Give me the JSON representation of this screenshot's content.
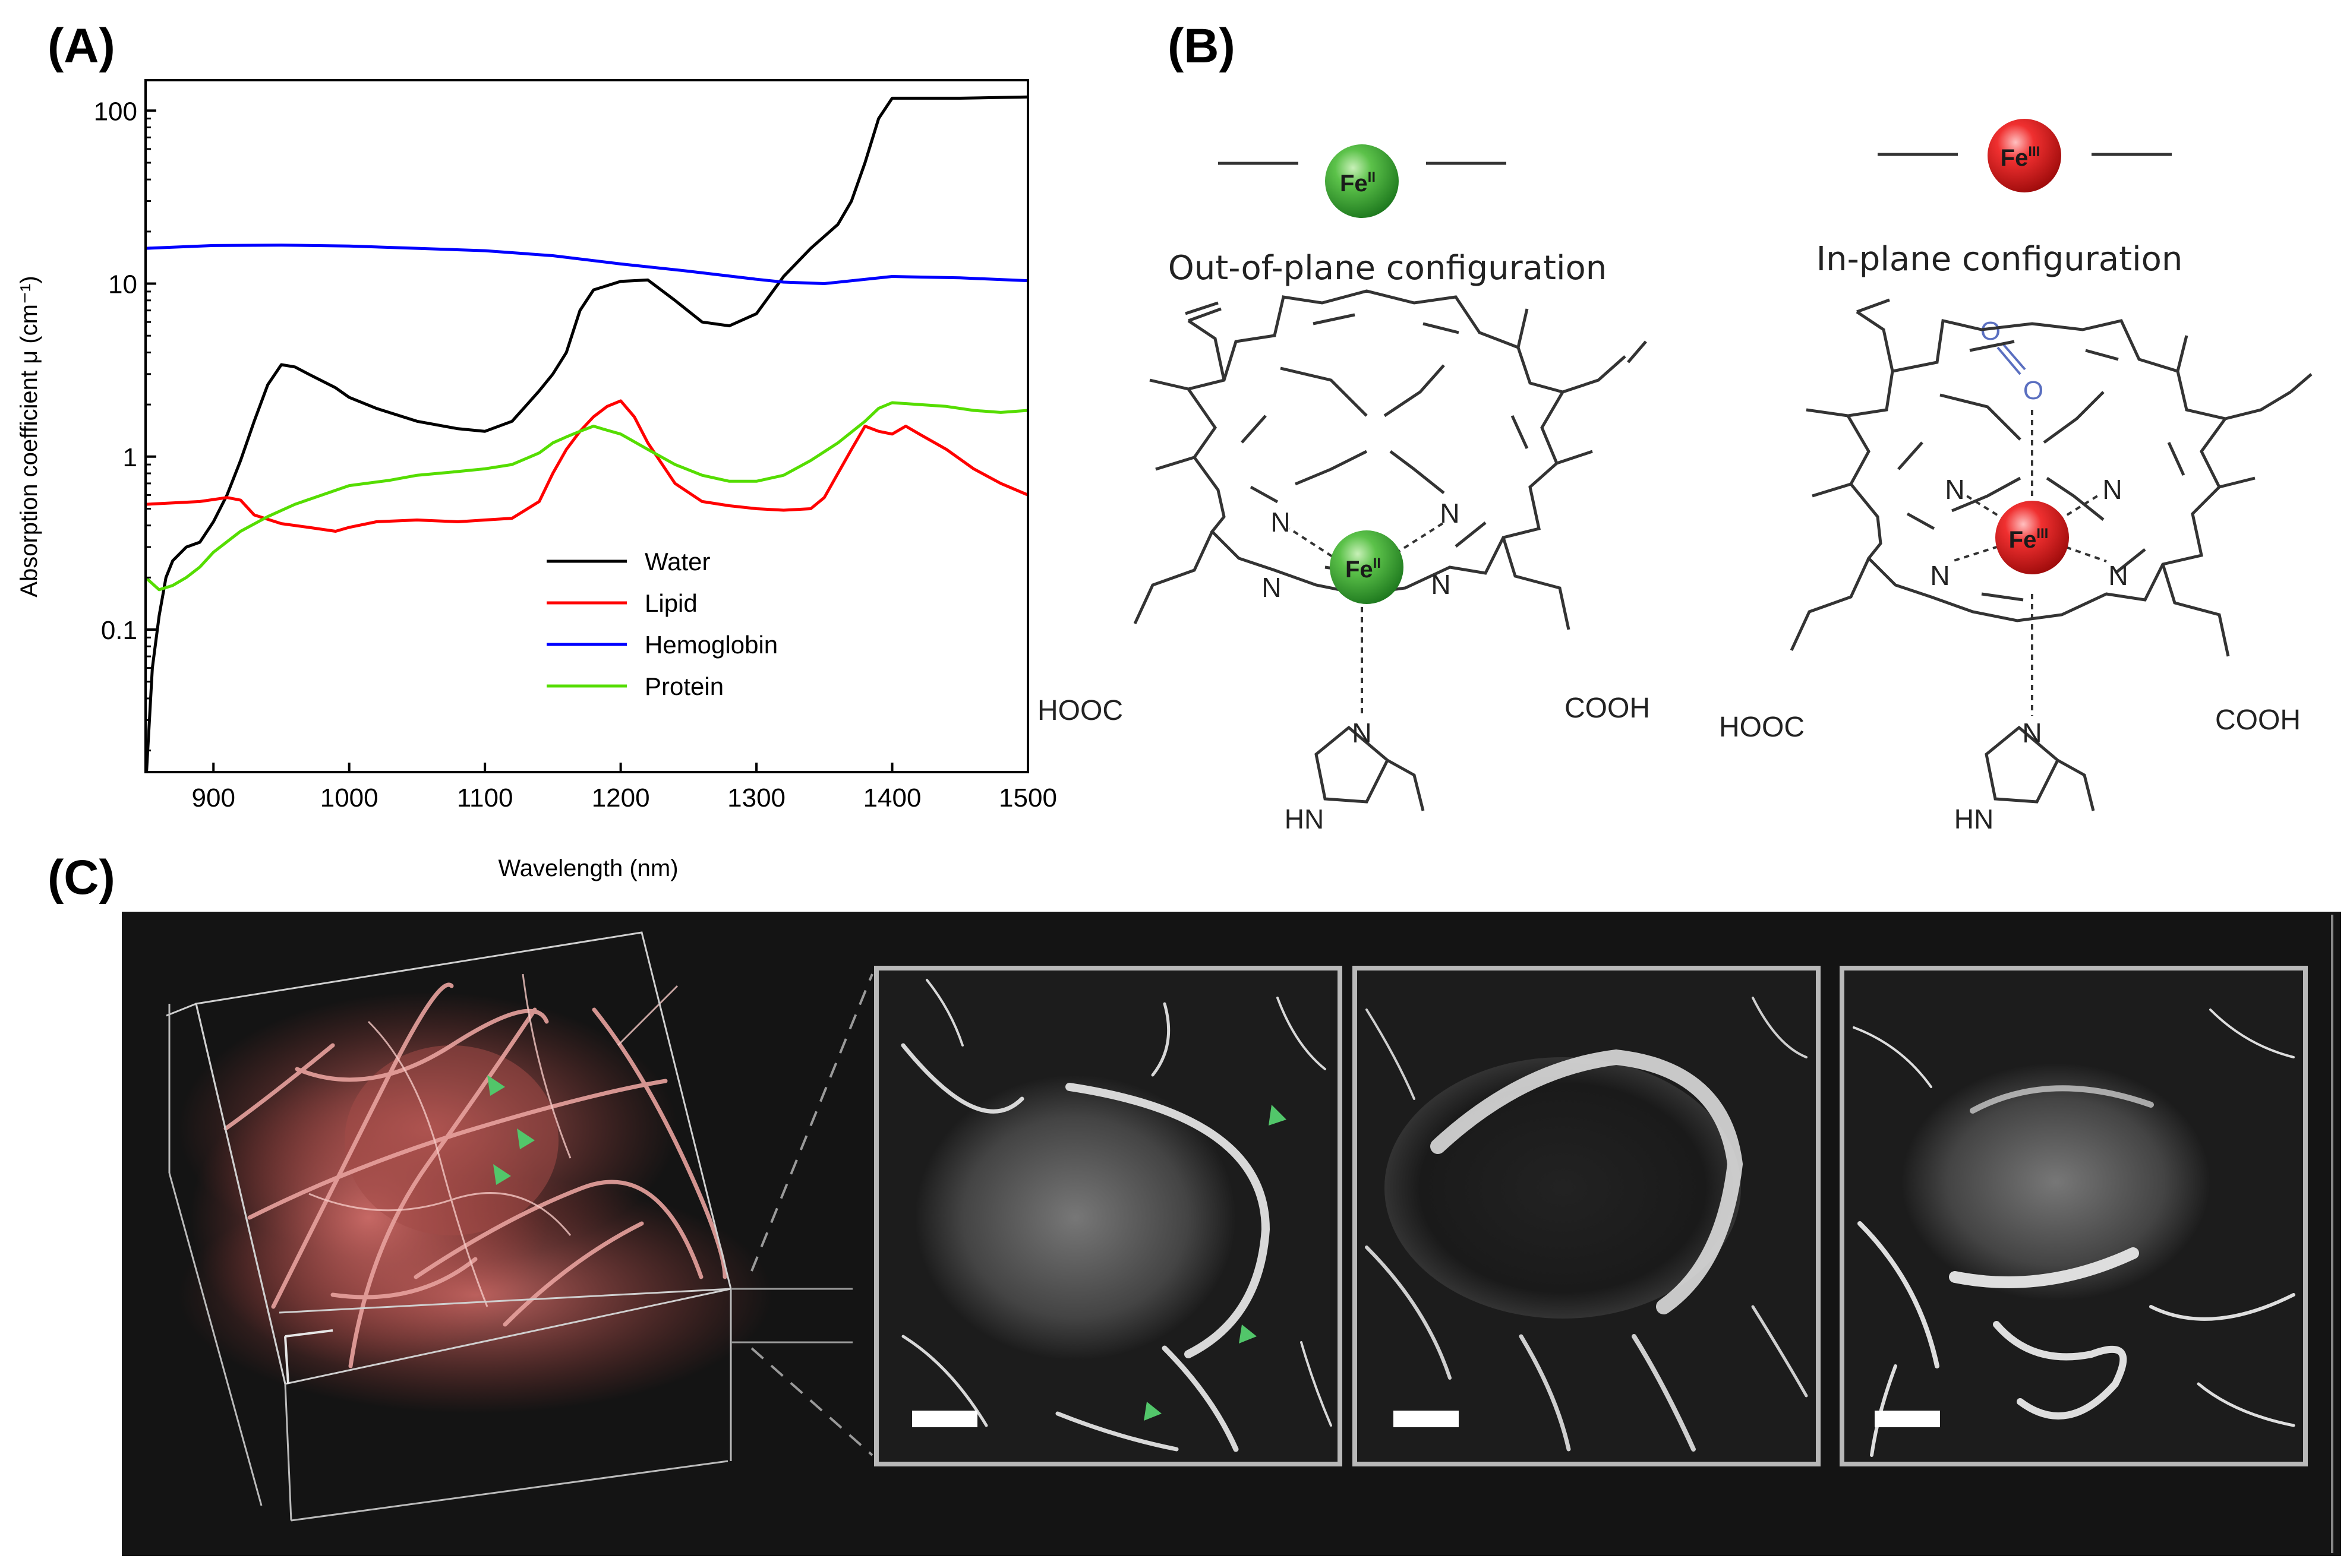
{
  "panels": {
    "a": {
      "label": "(A)"
    },
    "b": {
      "label": "(B)"
    },
    "c": {
      "label": "(C)"
    }
  },
  "chart_data": {
    "type": "line",
    "xlabel": "Wavelength (nm)",
    "ylabel": "Absorption coefficient μ (cm⁻¹)",
    "xlim": [
      850,
      1500
    ],
    "ylim": [
      0.015,
      150
    ],
    "yscale": "log",
    "xticks": [
      900,
      1000,
      1100,
      1200,
      1300,
      1400,
      1500
    ],
    "yticks": [
      {
        "value": 0.1,
        "label": "0.1"
      },
      {
        "value": 1,
        "label": "1"
      },
      {
        "value": 10,
        "label": "10"
      },
      {
        "value": 100,
        "label": "100"
      }
    ],
    "legend_position": "lower-middle",
    "grid": false,
    "series": [
      {
        "name": "Water",
        "color": "#000000",
        "x": [
          850,
          855,
          860,
          865,
          870,
          880,
          890,
          900,
          910,
          920,
          930,
          940,
          950,
          960,
          970,
          990,
          1000,
          1020,
          1050,
          1080,
          1100,
          1120,
          1140,
          1150,
          1160,
          1170,
          1180,
          1200,
          1220,
          1240,
          1260,
          1280,
          1300,
          1320,
          1340,
          1360,
          1370,
          1380,
          1390,
          1400,
          1420,
          1450,
          1500
        ],
        "y": [
          0.012,
          0.06,
          0.12,
          0.2,
          0.25,
          0.3,
          0.32,
          0.42,
          0.6,
          0.95,
          1.6,
          2.6,
          3.4,
          3.3,
          3.0,
          2.5,
          2.2,
          1.9,
          1.6,
          1.45,
          1.4,
          1.6,
          2.4,
          3.0,
          4.0,
          7.0,
          9.2,
          10.3,
          10.5,
          8.0,
          6.0,
          5.7,
          6.7,
          11.0,
          16.0,
          22.0,
          30.0,
          50.0,
          90.0,
          118.0,
          118.0,
          118.0,
          120.0
        ]
      },
      {
        "name": "Lipid",
        "color": "#ff0000",
        "x": [
          850,
          870,
          890,
          910,
          920,
          930,
          950,
          970,
          990,
          1000,
          1020,
          1050,
          1080,
          1100,
          1120,
          1140,
          1150,
          1160,
          1170,
          1180,
          1190,
          1200,
          1210,
          1220,
          1240,
          1260,
          1280,
          1300,
          1320,
          1340,
          1350,
          1360,
          1370,
          1380,
          1390,
          1400,
          1410,
          1420,
          1440,
          1460,
          1480,
          1500
        ],
        "y": [
          0.53,
          0.54,
          0.55,
          0.58,
          0.56,
          0.46,
          0.41,
          0.39,
          0.37,
          0.39,
          0.42,
          0.43,
          0.42,
          0.43,
          0.44,
          0.55,
          0.8,
          1.1,
          1.4,
          1.7,
          1.95,
          2.1,
          1.7,
          1.2,
          0.7,
          0.55,
          0.52,
          0.5,
          0.49,
          0.5,
          0.58,
          0.8,
          1.1,
          1.5,
          1.4,
          1.35,
          1.5,
          1.35,
          1.1,
          0.85,
          0.7,
          0.6
        ]
      },
      {
        "name": "Hemoglobin",
        "color": "#0000ff",
        "x": [
          850,
          900,
          950,
          1000,
          1050,
          1100,
          1150,
          1200,
          1250,
          1300,
          1320,
          1350,
          1400,
          1450,
          1500
        ],
        "y": [
          16.0,
          16.6,
          16.7,
          16.5,
          16.0,
          15.5,
          14.5,
          13.0,
          11.8,
          10.6,
          10.2,
          10.0,
          11.0,
          10.8,
          10.4
        ]
      },
      {
        "name": "Protein",
        "color": "#55dd00",
        "x": [
          850,
          860,
          870,
          880,
          890,
          900,
          920,
          940,
          960,
          980,
          1000,
          1030,
          1050,
          1080,
          1100,
          1120,
          1140,
          1150,
          1160,
          1170,
          1180,
          1190,
          1200,
          1220,
          1240,
          1260,
          1280,
          1300,
          1320,
          1340,
          1360,
          1380,
          1390,
          1400,
          1420,
          1440,
          1460,
          1480,
          1500
        ],
        "y": [
          0.2,
          0.17,
          0.18,
          0.2,
          0.23,
          0.28,
          0.37,
          0.45,
          0.53,
          0.6,
          0.68,
          0.73,
          0.78,
          0.82,
          0.85,
          0.9,
          1.05,
          1.2,
          1.3,
          1.4,
          1.5,
          1.42,
          1.35,
          1.1,
          0.9,
          0.78,
          0.72,
          0.72,
          0.78,
          0.95,
          1.2,
          1.6,
          1.9,
          2.05,
          2.0,
          1.95,
          1.85,
          1.8,
          1.85
        ]
      }
    ]
  },
  "structures": {
    "left": {
      "caption": "Out-of-plane configuration",
      "fe_symbol": "Fe",
      "fe_ox": "II",
      "n_label": "N",
      "hn_label": "HN",
      "acid_left": "HOOC",
      "acid_right": "COOH",
      "fe_color": "#3aaa35"
    },
    "right": {
      "caption": "In-plane configuration",
      "fe_symbol": "Fe",
      "fe_ox": "III",
      "n_label": "N",
      "hn_label": "HN",
      "acid_left": "HOOC",
      "acid_right": "COOH",
      "o_label": "O",
      "fe_color": "#e52222",
      "o2_color": "#5a6fc0"
    }
  }
}
